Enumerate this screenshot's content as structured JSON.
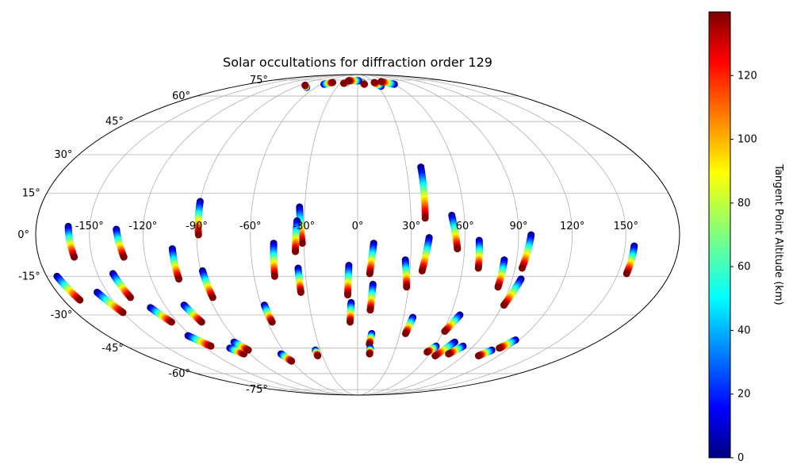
{
  "chart_data": {
    "type": "scatter",
    "title": "Solar occultations for diffraction order 129",
    "projection": "mollweide-like",
    "lon_ticks": [
      "-150°",
      "-120°",
      "-90°",
      "-60°",
      "-30°",
      "0°",
      "30°",
      "60°",
      "90°",
      "120°",
      "150°"
    ],
    "lat_ticks": [
      "75°",
      "60°",
      "45°",
      "30°",
      "15°",
      "0°",
      "-15°",
      "-30°",
      "-45°",
      "-60°",
      "-75°"
    ],
    "grid": true,
    "colorbar": {
      "label": "Tangent Point Altitude (km)",
      "colormap": "jet",
      "range": [
        0,
        140
      ],
      "ticks": [
        "0",
        "20",
        "40",
        "60",
        "80",
        "100",
        "120"
      ]
    },
    "tracks": [
      {
        "lon_start": -162,
        "lat_start": 3,
        "lon_end": -160,
        "lat_end": -8
      },
      {
        "lon_start": -174,
        "lat_start": -15,
        "lon_end": -170,
        "lat_end": -24
      },
      {
        "lon_start": -156,
        "lat_start": -21,
        "lon_end": -150,
        "lat_end": -29
      },
      {
        "lon_start": -141,
        "lat_start": -14,
        "lon_end": -138,
        "lat_end": -23
      },
      {
        "lon_start": -135,
        "lat_start": 2,
        "lon_end": -132,
        "lat_end": -8
      },
      {
        "lon_start": -130,
        "lat_start": -27,
        "lon_end": -124,
        "lat_end": -33
      },
      {
        "lon_start": -122,
        "lat_start": -39,
        "lon_end": -114,
        "lat_end": -44
      },
      {
        "lon_start": -108,
        "lat_start": -26,
        "lon_end": -104,
        "lat_end": -33
      },
      {
        "lon_start": -104,
        "lat_start": -5,
        "lon_end": -104,
        "lat_end": -16
      },
      {
        "lon_start": -101,
        "lat_start": -45,
        "lon_end": -95,
        "lat_end": -48
      },
      {
        "lon_start": -93,
        "lat_start": -42,
        "lon_end": -88,
        "lat_end": -46
      },
      {
        "lon_start": -90,
        "lat_start": 12,
        "lon_end": -89,
        "lat_end": 0
      },
      {
        "lon_start": -89,
        "lat_start": -13,
        "lon_end": -88,
        "lat_end": -23
      },
      {
        "lon_start": -64,
        "lat_start": -48,
        "lon_end": -60,
        "lat_end": -52
      },
      {
        "lon_start": -58,
        "lat_start": -26,
        "lon_end": -57,
        "lat_end": -33
      },
      {
        "lon_start": -47,
        "lat_start": -3,
        "lon_end": -48,
        "lat_end": -15
      },
      {
        "lon_start": -33,
        "lat_start": 10,
        "lon_end": -31,
        "lat_end": -3
      },
      {
        "lon_start": -34,
        "lat_start": 5,
        "lon_end": -35,
        "lat_end": -6
      },
      {
        "lon_start": -34,
        "lat_start": -12,
        "lon_end": -34,
        "lat_end": -21
      },
      {
        "lon_start": -34,
        "lat_start": -46,
        "lon_end": -34,
        "lat_end": -49
      },
      {
        "lon_start": -5,
        "lat_start": -11,
        "lon_end": -6,
        "lat_end": -22
      },
      {
        "lon_start": -4,
        "lat_start": -25,
        "lon_end": -5,
        "lat_end": -33
      },
      {
        "lon_start": 9,
        "lat_start": -3,
        "lon_end": 7,
        "lat_end": -14
      },
      {
        "lon_start": 9,
        "lat_start": -18,
        "lon_end": 8,
        "lat_end": -28
      },
      {
        "lon_start": 10,
        "lat_start": -38,
        "lon_end": 9,
        "lat_end": -43
      },
      {
        "lon_start": 10,
        "lat_start": -45,
        "lon_end": 10,
        "lat_end": -48
      },
      {
        "lon_start": 27,
        "lat_start": -9,
        "lon_end": 29,
        "lat_end": -19
      },
      {
        "lon_start": 39,
        "lat_start": 25,
        "lon_end": 38,
        "lat_end": 6
      },
      {
        "lon_start": 40,
        "lat_start": -1,
        "lon_end": 37,
        "lat_end": -13
      },
      {
        "lon_start": 36,
        "lat_start": -31,
        "lon_end": 34,
        "lat_end": -38
      },
      {
        "lon_start": 53,
        "lat_start": 7,
        "lon_end": 56,
        "lat_end": -5
      },
      {
        "lon_start": 68,
        "lat_start": -2,
        "lon_end": 69,
        "lat_end": -12
      },
      {
        "lon_start": 66,
        "lat_start": -30,
        "lon_end": 61,
        "lat_end": -37
      },
      {
        "lon_start": 61,
        "lat_start": -44,
        "lon_end": 57,
        "lat_end": -47
      },
      {
        "lon_start": 73,
        "lat_start": -42,
        "lon_end": 66,
        "lat_end": -49
      },
      {
        "lon_start": 83,
        "lat_start": -9,
        "lon_end": 83,
        "lat_end": -19
      },
      {
        "lon_start": 82,
        "lat_start": -44,
        "lon_end": 76,
        "lat_end": -48
      },
      {
        "lon_start": 97,
        "lat_start": 0,
        "lon_end": 94,
        "lat_end": -12
      },
      {
        "lon_start": 95,
        "lat_start": -16,
        "lon_end": 91,
        "lat_end": -26
      },
      {
        "lon_start": 117,
        "lat_start": -41,
        "lon_end": 112,
        "lat_end": -45
      },
      {
        "lon_start": 108,
        "lat_start": -46,
        "lon_end": 103,
        "lat_end": -49
      },
      {
        "lon_start": 155,
        "lat_start": -4,
        "lon_end": 155,
        "lat_end": -14
      },
      {
        "lon_start": -73,
        "lat_start": 67,
        "lon_end": -82,
        "lat_end": 69
      },
      {
        "lon_start": -55,
        "lat_start": 70,
        "lon_end": -45,
        "lat_end": 72
      },
      {
        "lon_start": -20,
        "lat_start": 72,
        "lon_end": -24,
        "lat_end": 71
      },
      {
        "lon_start": 9,
        "lat_start": 72,
        "lon_end": 11,
        "lat_end": 70
      },
      {
        "lon_start": 35,
        "lat_start": 68,
        "lon_end": 30,
        "lat_end": 72
      },
      {
        "lon_start": 60,
        "lat_start": 70,
        "lon_end": 45,
        "lat_end": 73
      },
      {
        "lon_start": 2,
        "lat_start": 74,
        "lon_end": -18,
        "lat_end": 74
      }
    ]
  }
}
